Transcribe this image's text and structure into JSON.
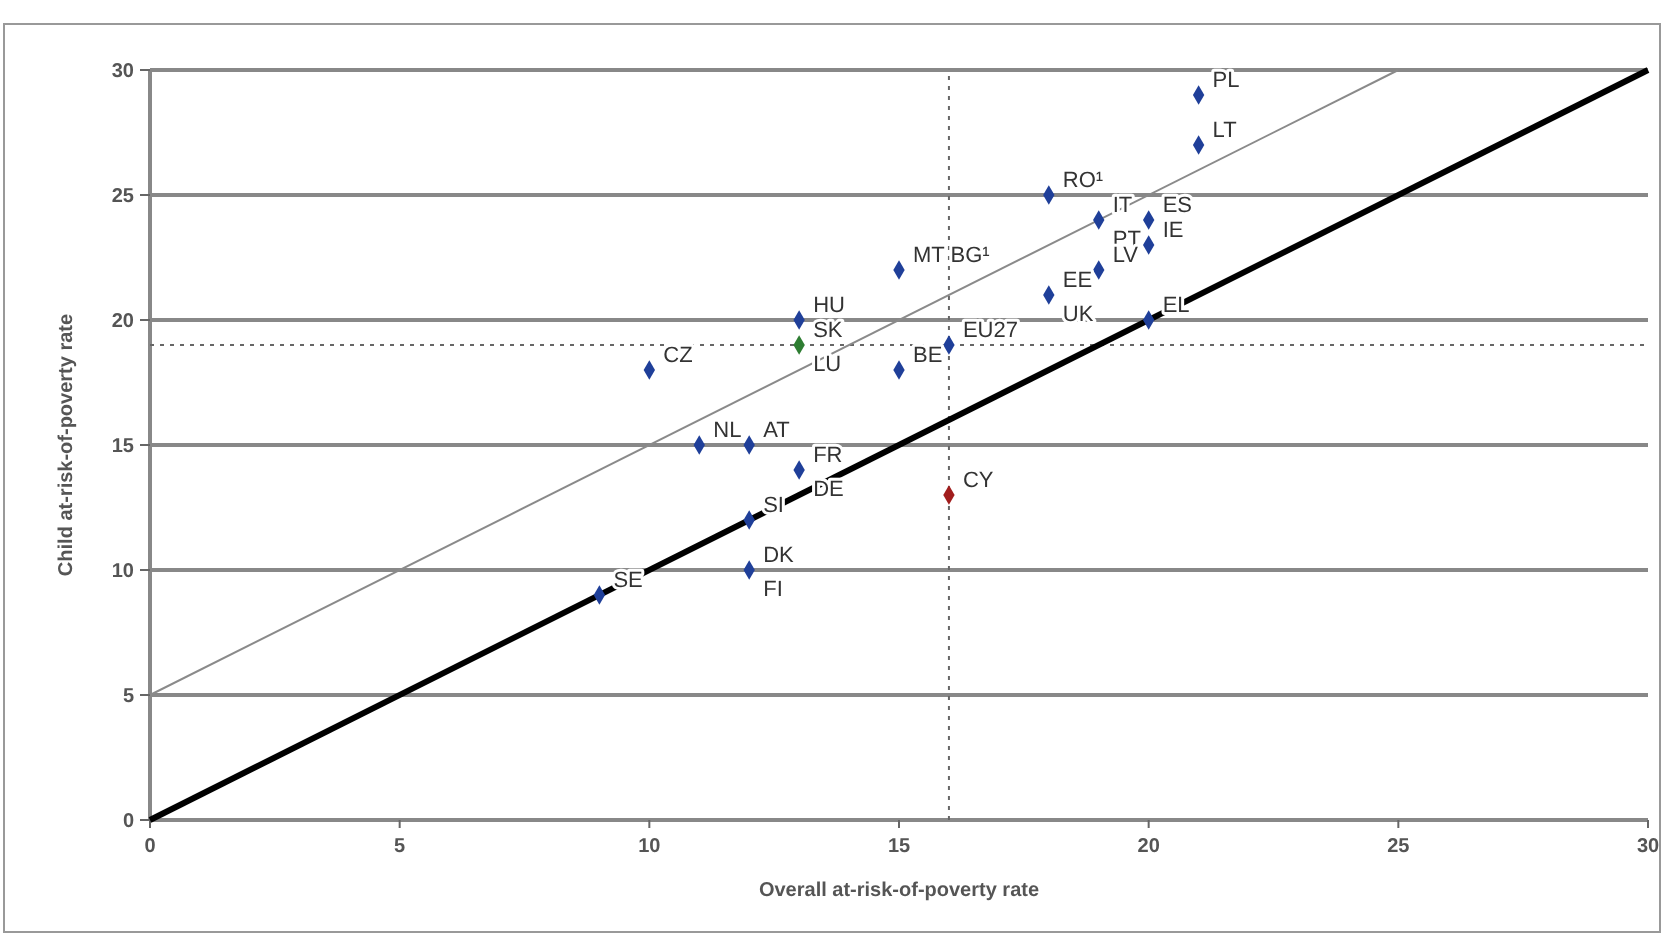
{
  "chart_data": {
    "type": "scatter",
    "xlabel": "Overall at-risk-of-poverty rate",
    "ylabel": "Child at-risk-of-poverty rate",
    "xlim": [
      0,
      30
    ],
    "ylim": [
      0,
      30
    ],
    "xticks": [
      0,
      5,
      10,
      15,
      20,
      25,
      30
    ],
    "yticks": [
      0,
      5,
      10,
      15,
      20,
      25,
      30
    ],
    "grid": "y",
    "marker": "diamond",
    "series": [
      {
        "x": [
          21,
          21,
          18,
          19,
          20,
          20,
          19,
          18,
          20,
          15,
          13,
          13,
          10,
          15,
          16,
          11,
          12,
          13,
          16,
          12,
          12,
          9
        ],
        "values": [
          29,
          27,
          25,
          24,
          24,
          23,
          22,
          21,
          20,
          22,
          20,
          19,
          18,
          18,
          19,
          15,
          15,
          14,
          13,
          12,
          10,
          9
        ],
        "colors": [
          "#1f3f99",
          "#1f3f99",
          "#1f3f99",
          "#1f3f99",
          "#1f3f99",
          "#1f3f99",
          "#1f3f99",
          "#1f3f99",
          "#1f3f99",
          "#1f3f99",
          "#1f3f99",
          "#2e7d32",
          "#1f3f99",
          "#1f3f99",
          "#1f3f99",
          "#1f3f99",
          "#1f3f99",
          "#1f3f99",
          "#a11d1d",
          "#1f3f99",
          "#1f3f99",
          "#1f3f99"
        ]
      },
      {
        "type": "line",
        "x": [
          0,
          30
        ],
        "values": [
          0,
          30
        ],
        "color": "#000000",
        "marker": "none"
      },
      {
        "type": "line",
        "x": [
          0,
          25
        ],
        "values": [
          5,
          30
        ],
        "color": "#8a8a8a",
        "marker": "none"
      }
    ],
    "ref_lines": [
      {
        "axis": "x",
        "value": 16,
        "line_style": "dotted",
        "color": "#666666"
      },
      {
        "axis": "y",
        "value": 19,
        "line_style": "dotted",
        "color": "#666666"
      }
    ],
    "annotations": [
      {
        "text": "PL",
        "x": 21,
        "y": 29
      },
      {
        "text": "LT",
        "x": 21,
        "y": 27
      },
      {
        "text": "RO¹",
        "x": 18,
        "y": 25
      },
      {
        "text": "IT",
        "x": 19,
        "y": 24
      },
      {
        "text": "PT",
        "x": 19,
        "y": 24
      },
      {
        "text": "ES",
        "x": 20,
        "y": 24
      },
      {
        "text": "IE",
        "x": 20,
        "y": 23
      },
      {
        "text": "LV",
        "x": 19,
        "y": 22
      },
      {
        "text": "EE",
        "x": 18,
        "y": 21
      },
      {
        "text": "UK",
        "x": 18,
        "y": 21
      },
      {
        "text": "EL",
        "x": 20,
        "y": 20
      },
      {
        "text": "MT BG¹",
        "x": 15,
        "y": 22
      },
      {
        "text": "HU",
        "x": 13,
        "y": 20
      },
      {
        "text": "SK",
        "x": 13,
        "y": 19
      },
      {
        "text": "LU",
        "x": 13,
        "y": 19
      },
      {
        "text": "CZ",
        "x": 10,
        "y": 18
      },
      {
        "text": "BE",
        "x": 15,
        "y": 18
      },
      {
        "text": "EU27",
        "x": 16,
        "y": 19
      },
      {
        "text": "NL",
        "x": 11,
        "y": 15
      },
      {
        "text": "AT",
        "x": 12,
        "y": 15
      },
      {
        "text": "FR",
        "x": 13,
        "y": 14
      },
      {
        "text": "DE",
        "x": 13,
        "y": 14
      },
      {
        "text": "CY",
        "x": 16,
        "y": 13
      },
      {
        "text": "SI",
        "x": 12,
        "y": 12
      },
      {
        "text": "DK",
        "x": 12,
        "y": 10
      },
      {
        "text": "FI",
        "x": 12,
        "y": 10
      },
      {
        "text": "SE",
        "x": 9,
        "y": 9
      }
    ]
  }
}
